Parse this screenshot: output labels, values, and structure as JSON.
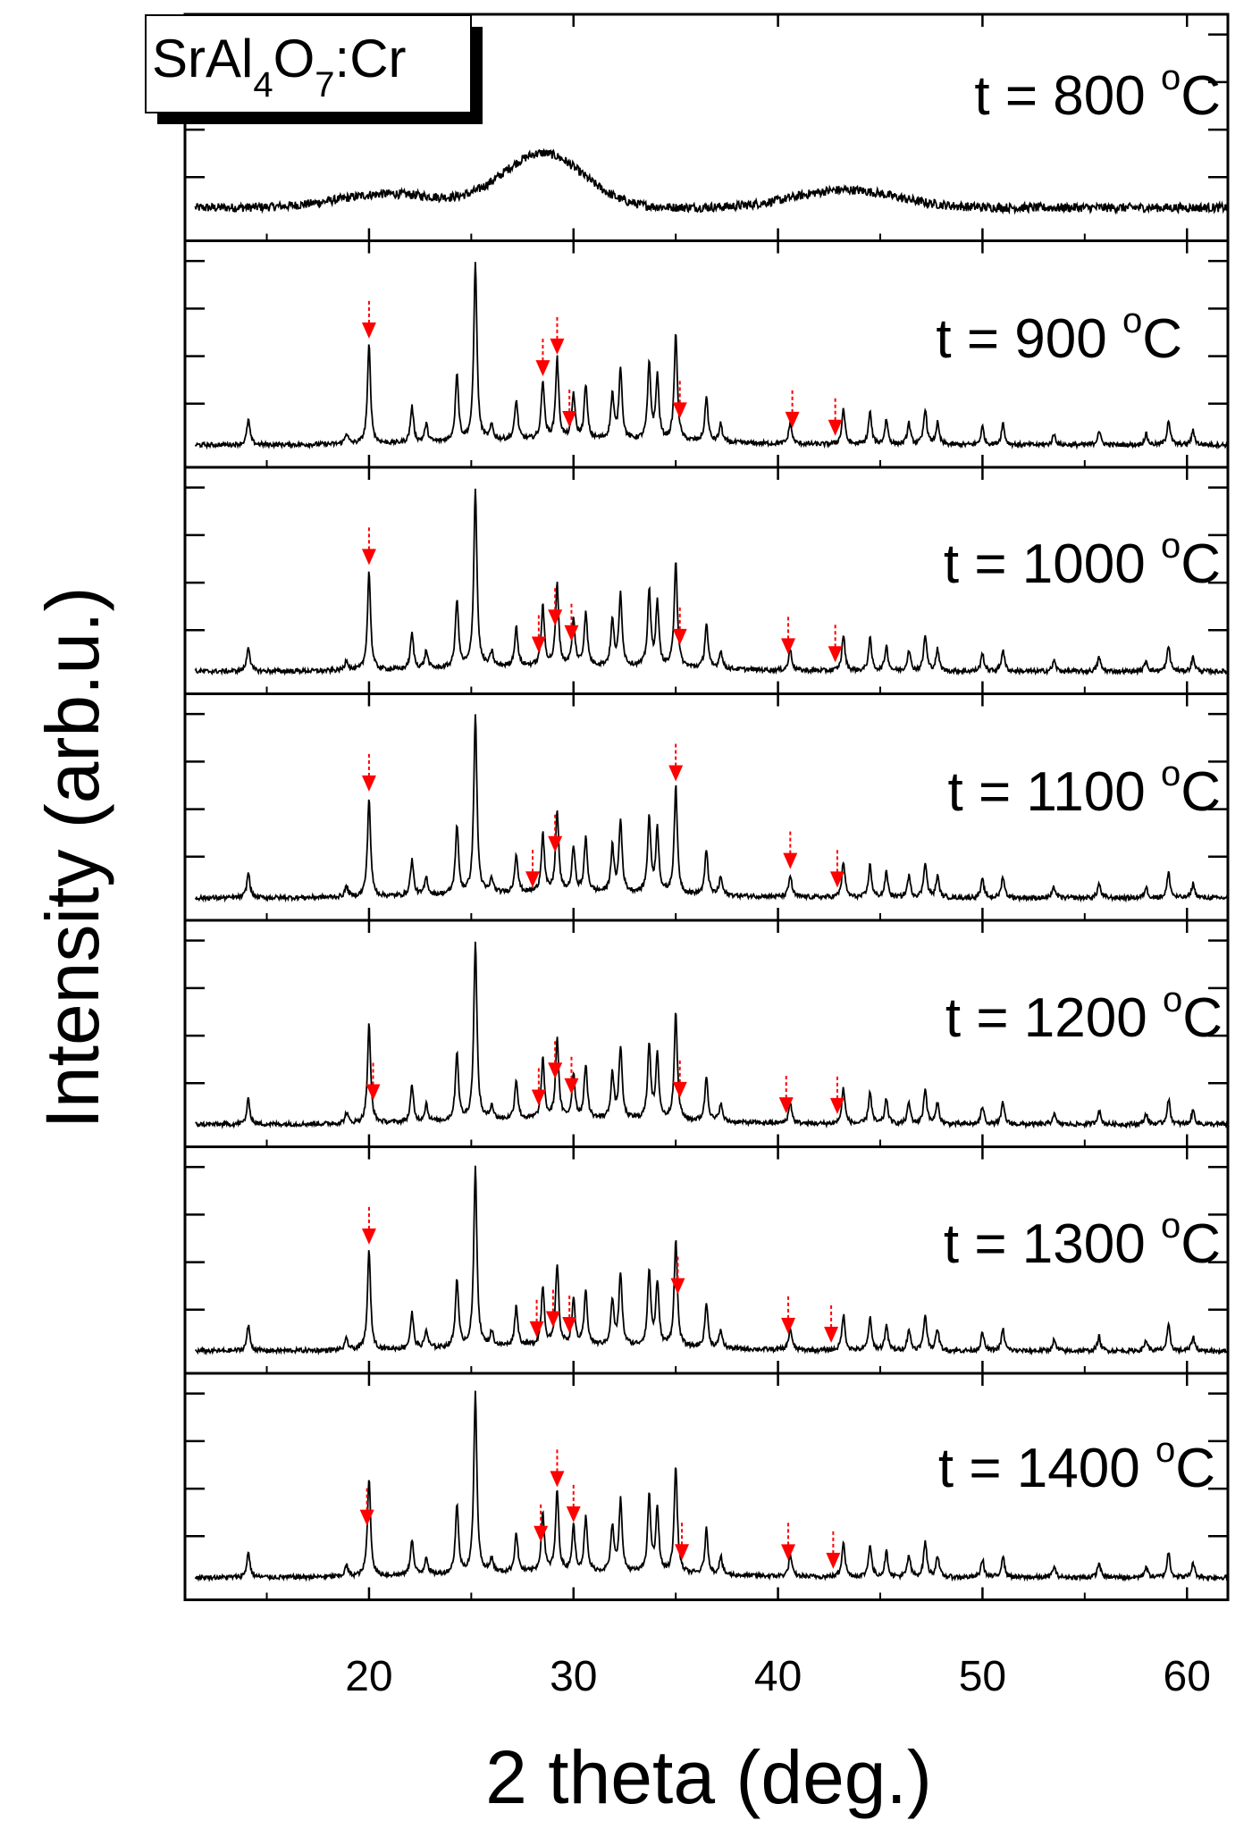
{
  "chart_data": {
    "type": "line",
    "title": "",
    "compound": {
      "base": "SrAl",
      "sub1": "4",
      "mid": "O",
      "sub2": "7",
      "tail": ":Cr"
    },
    "xlabel": "2 theta (deg.)",
    "ylabel": "Intensity (arb.u.)",
    "xlim": [
      11,
      62
    ],
    "xticks": [
      20,
      30,
      40,
      50,
      60
    ],
    "xtick_labels": [
      "20",
      "30",
      "40",
      "50",
      "60"
    ],
    "grid": false,
    "legend": "none",
    "annotation": "red arrows mark additional phase reflections",
    "series": [
      {
        "name": "t = 800 °C",
        "label_prefix": "t = 800 ",
        "label_sup": "o",
        "label_unit": "C",
        "amorphous": true,
        "peaks": [],
        "arrows": []
      },
      {
        "name": "t = 900 °C",
        "label_prefix": "t = 900 ",
        "label_sup": "o",
        "label_unit": "C",
        "amorphous": false,
        "peaks": [],
        "arrows": [
          20.0,
          28.5,
          29.2,
          29.8,
          35.2,
          40.7,
          42.8
        ]
      },
      {
        "name": "t = 1000 °C",
        "label_prefix": "t = 1000 ",
        "label_sup": "o",
        "label_unit": "C",
        "amorphous": false,
        "peaks": [],
        "arrows": [
          20.0,
          28.3,
          29.1,
          29.9,
          35.2,
          40.5,
          42.8
        ]
      },
      {
        "name": "t = 1100 °C",
        "label_prefix": "t = 1100 ",
        "label_sup": "o",
        "label_unit": "C",
        "amorphous": false,
        "peaks": [],
        "arrows": [
          20.0,
          28.0,
          29.1,
          35.0,
          40.6,
          42.9
        ]
      },
      {
        "name": "t = 1200 °C",
        "label_prefix": "t = 1200 ",
        "label_sup": "o",
        "label_unit": "C",
        "amorphous": false,
        "peaks": [],
        "arrows": [
          20.2,
          28.3,
          29.1,
          29.9,
          35.2,
          40.4,
          42.9
        ]
      },
      {
        "name": "t = 1300 °C",
        "label_prefix": "t = 1300 ",
        "label_sup": "o",
        "label_unit": "C",
        "amorphous": false,
        "peaks": [],
        "arrows": [
          20.0,
          28.2,
          29.0,
          29.8,
          35.1,
          40.5,
          42.6
        ]
      },
      {
        "name": "t = 1400 °C",
        "label_prefix": "t = 1400 ",
        "label_sup": "o",
        "label_unit": "C",
        "amorphous": false,
        "peaks": [],
        "arrows": [
          19.9,
          28.4,
          29.2,
          30.0,
          35.3,
          40.5,
          42.7
        ]
      }
    ],
    "crystalline_peaks": [
      [
        14.1,
        0.14
      ],
      [
        18.9,
        0.06
      ],
      [
        20.0,
        0.55
      ],
      [
        22.1,
        0.2
      ],
      [
        22.8,
        0.1
      ],
      [
        24.3,
        0.38
      ],
      [
        25.2,
        1.0
      ],
      [
        26.0,
        0.08
      ],
      [
        27.2,
        0.22
      ],
      [
        28.5,
        0.33
      ],
      [
        29.2,
        0.45
      ],
      [
        30.0,
        0.25
      ],
      [
        30.6,
        0.3
      ],
      [
        31.9,
        0.25
      ],
      [
        32.3,
        0.4
      ],
      [
        33.7,
        0.42
      ],
      [
        34.1,
        0.35
      ],
      [
        35.0,
        0.6
      ],
      [
        36.5,
        0.25
      ],
      [
        37.2,
        0.1
      ],
      [
        40.6,
        0.12
      ],
      [
        43.2,
        0.2
      ],
      [
        44.5,
        0.18
      ],
      [
        45.3,
        0.14
      ],
      [
        46.4,
        0.12
      ],
      [
        47.2,
        0.2
      ],
      [
        47.8,
        0.12
      ],
      [
        50.0,
        0.1
      ],
      [
        51.0,
        0.12
      ],
      [
        53.5,
        0.06
      ],
      [
        55.7,
        0.08
      ],
      [
        58.0,
        0.06
      ],
      [
        59.1,
        0.14
      ],
      [
        60.3,
        0.08
      ]
    ],
    "amorphous_humps": [
      [
        21.0,
        0.14,
        3.5
      ],
      [
        28.5,
        0.55,
        2.8
      ],
      [
        43.3,
        0.18,
        3.5
      ]
    ]
  }
}
